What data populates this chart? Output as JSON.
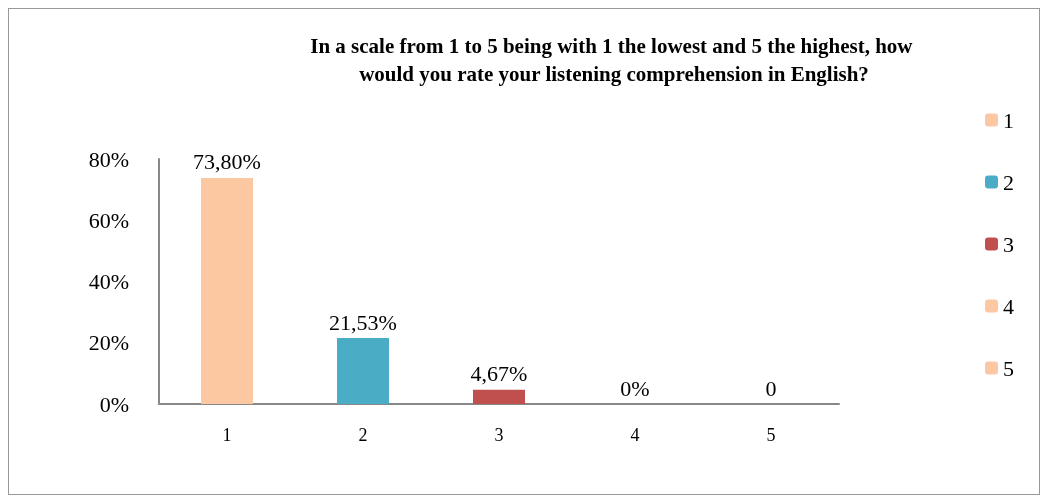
{
  "chart_data": {
    "type": "bar",
    "title": "In a scale from 1 to 5 being with 1 the lowest and 5 the highest, how would you rate your listening comprehension in English?",
    "categories": [
      "1",
      "2",
      "3",
      "4",
      "5"
    ],
    "series": [
      {
        "name": "1",
        "color": "#fbc8a2",
        "values": [
          73.8,
          null,
          null,
          null,
          null
        ],
        "value_labels": [
          "73,80%",
          null,
          null,
          null,
          null
        ]
      },
      {
        "name": "2",
        "color": "#4bacc6",
        "values": [
          null,
          21.53,
          null,
          null,
          null
        ],
        "value_labels": [
          null,
          "21,53%",
          null,
          null,
          null
        ]
      },
      {
        "name": "3",
        "color": "#c0504d",
        "values": [
          null,
          null,
          4.67,
          null,
          null
        ],
        "value_labels": [
          null,
          null,
          "4,67%",
          null,
          null
        ]
      },
      {
        "name": "4",
        "color": "#fbc8a2",
        "values": [
          null,
          null,
          null,
          0,
          null
        ],
        "value_labels": [
          null,
          null,
          null,
          "0%",
          null
        ]
      },
      {
        "name": "5",
        "color": "#fbc8a2",
        "values": [
          null,
          null,
          null,
          null,
          0
        ],
        "value_labels": [
          null,
          null,
          null,
          null,
          "0"
        ]
      }
    ],
    "ylim": [
      0,
      80
    ],
    "yticks": [
      {
        "value": 0,
        "label": "0%"
      },
      {
        "value": 20,
        "label": "20%"
      },
      {
        "value": 40,
        "label": "40%"
      },
      {
        "value": 60,
        "label": "60%"
      },
      {
        "value": 80,
        "label": "80%"
      }
    ],
    "legend": "right",
    "grid": false
  }
}
